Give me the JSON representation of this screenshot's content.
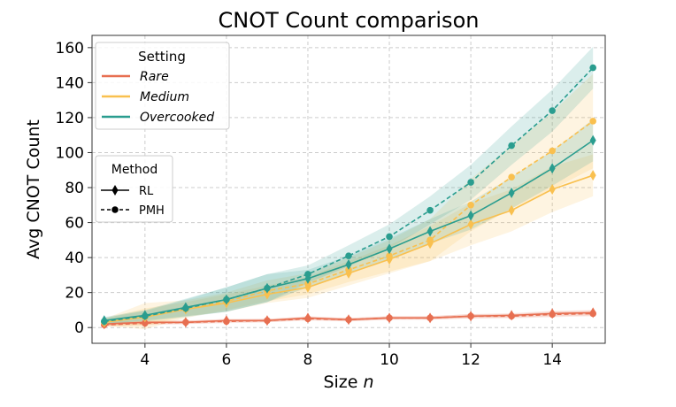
{
  "chart_data": {
    "type": "line",
    "title": "CNOT Count comparison",
    "xlabel": "Size n",
    "ylabel": "Avg CNOT Count",
    "xlim": [
      2.7,
      15.3
    ],
    "ylim": [
      -9,
      167
    ],
    "xticks": [
      4,
      6,
      8,
      10,
      12,
      14
    ],
    "yticks": [
      0,
      20,
      40,
      60,
      80,
      100,
      120,
      140,
      160
    ],
    "grid": true,
    "x": [
      3,
      4,
      5,
      6,
      7,
      8,
      9,
      10,
      11,
      12,
      13,
      14,
      15
    ],
    "legend_setting": {
      "title": "Setting",
      "placement": "top-left",
      "entries": [
        "Rare",
        "Medium",
        "Overcooked"
      ]
    },
    "legend_method": {
      "title": "Method",
      "placement": "center-left",
      "entries": [
        "RL",
        "PMH"
      ]
    },
    "colors": {
      "Rare": "#e76f51",
      "Medium": "#f9c04f",
      "Overcooked": "#2a9d8f"
    },
    "series": [
      {
        "name": "Rare",
        "method": "RL",
        "values": [
          2,
          3,
          3,
          4,
          4,
          5.5,
          4.5,
          5.5,
          5.5,
          6.5,
          7,
          8,
          8.5
        ],
        "spread": [
          1,
          1,
          1,
          1,
          1,
          1,
          1,
          1,
          1,
          1.2,
          1.2,
          1.5,
          1.5
        ]
      },
      {
        "name": "Rare",
        "method": "PMH",
        "values": [
          1.5,
          2.5,
          3,
          3.5,
          4,
          5,
          4.5,
          5.5,
          5.5,
          6.5,
          6.5,
          7.5,
          8
        ],
        "spread": [
          1,
          1,
          1,
          1,
          1,
          1,
          1,
          1,
          1,
          1.2,
          1.2,
          1.5,
          1.5
        ]
      },
      {
        "name": "Medium",
        "method": "RL",
        "values": [
          3,
          6,
          10.5,
          14,
          19,
          23,
          31,
          39,
          48,
          59,
          67,
          79,
          87
        ],
        "spread": [
          2,
          5,
          4,
          5,
          5,
          6,
          7,
          8,
          10,
          12,
          12,
          13,
          12
        ]
      },
      {
        "name": "Medium",
        "method": "PMH",
        "values": [
          3,
          6,
          10.5,
          15,
          21,
          25,
          33,
          41,
          50,
          70,
          86,
          101,
          118
        ],
        "spread": [
          2,
          8,
          5,
          5,
          6,
          6,
          7,
          9,
          12,
          15,
          18,
          22,
          27
        ]
      },
      {
        "name": "Overcooked",
        "method": "RL",
        "values": [
          4,
          7,
          11.5,
          16,
          22.5,
          28,
          36,
          45,
          55,
          64,
          77,
          91,
          107
        ],
        "spread": [
          2,
          3,
          5,
          7,
          8,
          5,
          5,
          6,
          7,
          8,
          9,
          10,
          12
        ]
      },
      {
        "name": "Overcooked",
        "method": "PMH",
        "values": [
          3.5,
          6.5,
          11,
          16,
          22.5,
          30.5,
          41,
          52,
          67,
          83,
          104,
          124,
          148.5
        ],
        "spread": [
          2,
          3,
          5,
          7,
          8,
          5,
          6,
          7,
          8,
          10,
          11,
          12,
          12
        ]
      }
    ]
  }
}
